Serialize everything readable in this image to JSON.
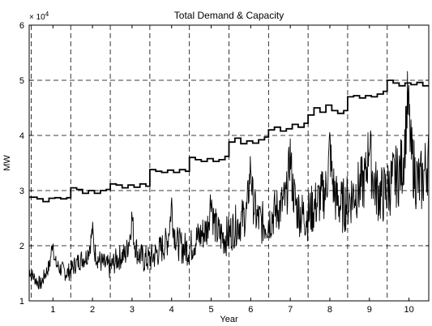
{
  "chart_data": {
    "type": "line",
    "title": "Total Demand & Capacity",
    "xlabel": "Year",
    "ylabel": "MW",
    "y_multiplier_label": "× 10",
    "y_multiplier_exponent": "4",
    "xlim": [
      0.4,
      10.5
    ],
    "ylim": [
      1,
      6
    ],
    "x_ticks": [
      1,
      2,
      3,
      4,
      5,
      6,
      7,
      8,
      9,
      10
    ],
    "x_tick_labels": [
      "1",
      "2",
      "3",
      "4",
      "5",
      "6",
      "7",
      "8",
      "9",
      "10"
    ],
    "y_ticks": [
      1,
      2,
      3,
      4,
      5,
      6
    ],
    "y_tick_labels": [
      "1",
      "2",
      "3",
      "4",
      "5",
      "6"
    ],
    "grid": true,
    "grid_style": "dashed",
    "x_grid_lines": [
      0.45,
      1.45,
      2.45,
      3.45,
      4.45,
      5.45,
      6.45,
      7.45,
      8.45,
      9.45
    ],
    "y_grid_lines": [
      2,
      3,
      4,
      5
    ],
    "series": [
      {
        "role": "capacity",
        "style": "step",
        "points": [
          [
            0.4,
            2.88
          ],
          [
            0.6,
            2.85
          ],
          [
            0.75,
            2.8
          ],
          [
            0.9,
            2.86
          ],
          [
            1.05,
            2.87
          ],
          [
            1.2,
            2.85
          ],
          [
            1.35,
            2.87
          ],
          [
            1.45,
            3.05
          ],
          [
            1.6,
            3.02
          ],
          [
            1.75,
            2.95
          ],
          [
            1.9,
            3.0
          ],
          [
            2.05,
            2.95
          ],
          [
            2.2,
            3.0
          ],
          [
            2.35,
            3.02
          ],
          [
            2.45,
            3.12
          ],
          [
            2.6,
            3.1
          ],
          [
            2.75,
            3.05
          ],
          [
            2.9,
            3.1
          ],
          [
            3.05,
            3.06
          ],
          [
            3.2,
            3.12
          ],
          [
            3.35,
            3.08
          ],
          [
            3.45,
            3.38
          ],
          [
            3.6,
            3.35
          ],
          [
            3.75,
            3.33
          ],
          [
            3.9,
            3.37
          ],
          [
            4.05,
            3.33
          ],
          [
            4.2,
            3.38
          ],
          [
            4.35,
            3.35
          ],
          [
            4.45,
            3.6
          ],
          [
            4.6,
            3.56
          ],
          [
            4.75,
            3.53
          ],
          [
            4.9,
            3.58
          ],
          [
            5.05,
            3.53
          ],
          [
            5.2,
            3.56
          ],
          [
            5.35,
            3.62
          ],
          [
            5.45,
            3.88
          ],
          [
            5.6,
            3.95
          ],
          [
            5.75,
            3.85
          ],
          [
            5.9,
            3.9
          ],
          [
            6.05,
            3.86
          ],
          [
            6.2,
            3.92
          ],
          [
            6.35,
            3.97
          ],
          [
            6.45,
            4.1
          ],
          [
            6.6,
            4.15
          ],
          [
            6.75,
            4.08
          ],
          [
            6.9,
            4.12
          ],
          [
            7.05,
            4.2
          ],
          [
            7.2,
            4.15
          ],
          [
            7.35,
            4.22
          ],
          [
            7.45,
            4.37
          ],
          [
            7.6,
            4.5
          ],
          [
            7.75,
            4.42
          ],
          [
            7.9,
            4.55
          ],
          [
            8.05,
            4.45
          ],
          [
            8.2,
            4.4
          ],
          [
            8.35,
            4.45
          ],
          [
            8.45,
            4.7
          ],
          [
            8.6,
            4.72
          ],
          [
            8.75,
            4.68
          ],
          [
            8.9,
            4.72
          ],
          [
            9.05,
            4.7
          ],
          [
            9.2,
            4.75
          ],
          [
            9.35,
            4.8
          ],
          [
            9.45,
            5.0
          ],
          [
            9.6,
            4.95
          ],
          [
            9.75,
            4.9
          ],
          [
            9.9,
            4.95
          ],
          [
            10.05,
            4.92
          ],
          [
            10.2,
            4.96
          ],
          [
            10.35,
            4.9
          ],
          [
            10.5,
            4.9
          ]
        ]
      },
      {
        "role": "demand",
        "style": "line",
        "points": [
          [
            0.4,
            1.55
          ],
          [
            0.5,
            1.45
          ],
          [
            0.6,
            1.35
          ],
          [
            0.7,
            1.3
          ],
          [
            0.78,
            1.45
          ],
          [
            0.85,
            1.55
          ],
          [
            0.92,
            1.65
          ],
          [
            0.97,
            1.95
          ],
          [
            1.0,
            2.1
          ],
          [
            1.05,
            1.7
          ],
          [
            1.15,
            1.6
          ],
          [
            1.25,
            1.55
          ],
          [
            1.35,
            1.5
          ],
          [
            1.45,
            1.55
          ],
          [
            1.55,
            1.65
          ],
          [
            1.7,
            1.75
          ],
          [
            1.85,
            1.8
          ],
          [
            1.95,
            2.05
          ],
          [
            2.0,
            2.3
          ],
          [
            2.05,
            1.9
          ],
          [
            2.15,
            1.75
          ],
          [
            2.3,
            1.65
          ],
          [
            2.45,
            1.6
          ],
          [
            2.55,
            1.7
          ],
          [
            2.7,
            1.8
          ],
          [
            2.85,
            1.85
          ],
          [
            2.95,
            2.2
          ],
          [
            3.0,
            2.55
          ],
          [
            3.05,
            2.1
          ],
          [
            3.15,
            1.85
          ],
          [
            3.3,
            1.75
          ],
          [
            3.45,
            1.75
          ],
          [
            3.6,
            1.85
          ],
          [
            3.75,
            1.95
          ],
          [
            3.9,
            2.1
          ],
          [
            3.97,
            2.5
          ],
          [
            4.0,
            2.8
          ],
          [
            4.05,
            2.3
          ],
          [
            4.15,
            2.05
          ],
          [
            4.3,
            1.95
          ],
          [
            4.45,
            1.95
          ],
          [
            4.6,
            2.1
          ],
          [
            4.75,
            2.2
          ],
          [
            4.9,
            2.3
          ],
          [
            4.97,
            2.7
          ],
          [
            5.0,
            2.95
          ],
          [
            5.05,
            2.5
          ],
          [
            5.15,
            2.25
          ],
          [
            5.3,
            2.15
          ],
          [
            5.45,
            2.2
          ],
          [
            5.6,
            2.35
          ],
          [
            5.75,
            2.45
          ],
          [
            5.9,
            2.6
          ],
          [
            5.97,
            3.2
          ],
          [
            6.0,
            3.5
          ],
          [
            6.05,
            2.85
          ],
          [
            6.15,
            2.5
          ],
          [
            6.3,
            2.4
          ],
          [
            6.45,
            2.45
          ],
          [
            6.6,
            2.6
          ],
          [
            6.75,
            2.7
          ],
          [
            6.9,
            2.85
          ],
          [
            6.97,
            3.4
          ],
          [
            7.0,
            3.7
          ],
          [
            7.05,
            3.1
          ],
          [
            7.15,
            2.7
          ],
          [
            7.3,
            2.55
          ],
          [
            7.45,
            2.55
          ],
          [
            7.6,
            2.7
          ],
          [
            7.75,
            2.85
          ],
          [
            7.9,
            3.0
          ],
          [
            7.97,
            3.5
          ],
          [
            8.0,
            3.85
          ],
          [
            8.05,
            3.25
          ],
          [
            8.15,
            2.85
          ],
          [
            8.3,
            2.7
          ],
          [
            8.45,
            2.8
          ],
          [
            8.6,
            2.95
          ],
          [
            8.75,
            3.05
          ],
          [
            8.9,
            3.2
          ],
          [
            8.97,
            3.7
          ],
          [
            9.0,
            4.0
          ],
          [
            9.05,
            3.4
          ],
          [
            9.15,
            3.05
          ],
          [
            9.3,
            2.9
          ],
          [
            9.45,
            3.0
          ],
          [
            9.6,
            3.2
          ],
          [
            9.75,
            3.3
          ],
          [
            9.85,
            3.5
          ],
          [
            9.92,
            4.1
          ],
          [
            9.96,
            4.6
          ],
          [
            10.0,
            4.4
          ],
          [
            10.05,
            3.7
          ],
          [
            10.15,
            3.3
          ],
          [
            10.25,
            3.1
          ],
          [
            10.35,
            3.2
          ],
          [
            10.45,
            3.5
          ],
          [
            10.5,
            3.55
          ]
        ]
      }
    ]
  }
}
